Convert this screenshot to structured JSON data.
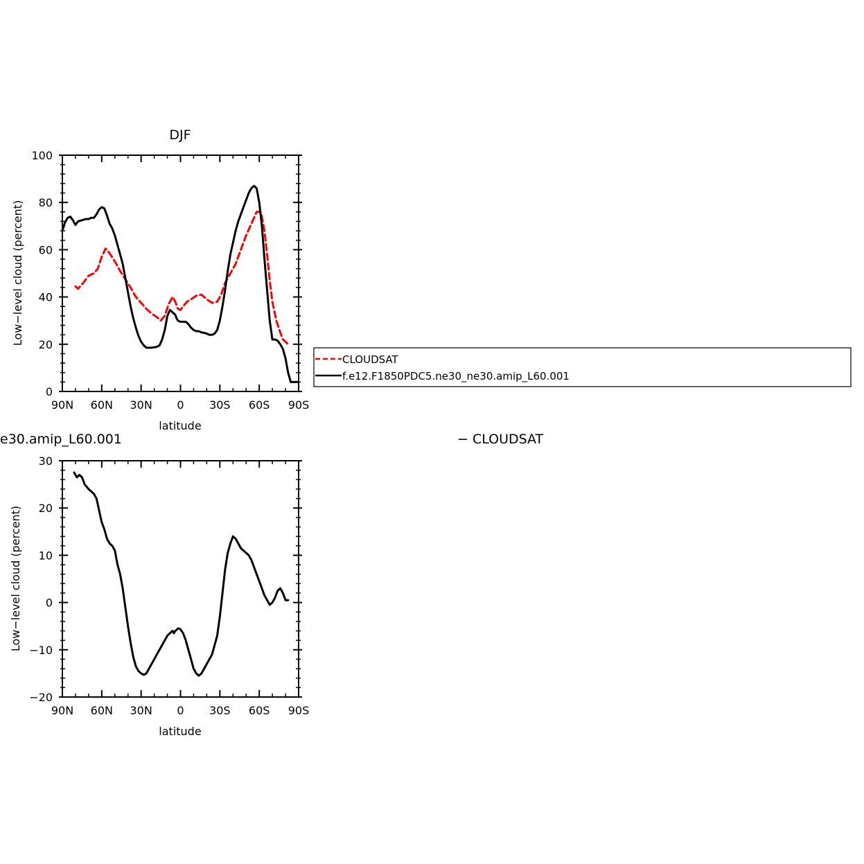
{
  "chart_data": [
    {
      "type": "line",
      "title": "DJF",
      "xlabel": "latitude",
      "ylabel": "Low−level cloud (percent)",
      "xlim": [
        -90,
        90
      ],
      "ylim": [
        0,
        100
      ],
      "xticks": [
        -90,
        -60,
        -30,
        0,
        30,
        60,
        90
      ],
      "xtick_labels": [
        "90N",
        "60N",
        "30N",
        "0",
        "30S",
        "60S",
        "90S"
      ],
      "yticks": [
        0,
        20,
        40,
        60,
        80,
        100
      ],
      "ytick_labels": [
        "0",
        "20",
        "40",
        "60",
        "80",
        "100"
      ],
      "legend": {
        "placement": "right of plot",
        "entries": [
          "CLOUDSAT",
          "f.e12.F1850PDC5.ne30_ne30.amip_L60.001"
        ]
      },
      "series": [
        {
          "name": "CLOUDSAT",
          "color": "#ff0000",
          "style": "dashed",
          "x": [
            -80,
            -78,
            -74,
            -70,
            -66,
            -63,
            -60,
            -57,
            -54,
            -50,
            -46,
            -42,
            -38,
            -34,
            -30,
            -26,
            -22,
            -18,
            -15,
            -12,
            -9,
            -6,
            -4,
            -2,
            0,
            2,
            5,
            8,
            12,
            16,
            18,
            20,
            24,
            28,
            31,
            34,
            38,
            42,
            46,
            50,
            54,
            58,
            61,
            62,
            64,
            66,
            68,
            70,
            73,
            76,
            78,
            80,
            82
          ],
          "y": [
            44.5,
            43.5,
            46,
            49,
            50,
            52,
            57,
            60.5,
            58.5,
            55,
            51,
            47.5,
            44,
            40,
            37.5,
            35,
            33,
            31.5,
            30,
            32,
            37,
            40,
            38,
            35,
            34.5,
            36,
            38,
            39,
            40.5,
            41,
            40,
            39,
            37.5,
            38,
            41,
            46,
            50,
            54,
            60,
            66,
            71,
            76,
            76,
            74,
            68,
            58,
            47,
            38,
            30,
            25,
            22,
            21,
            20
          ]
        },
        {
          "name": "f.e12.F1850PDC5.ne30_ne30.amip_L60.001",
          "color": "#000000",
          "style": "solid",
          "x": [
            -90,
            -88,
            -86,
            -84,
            -82,
            -80,
            -78,
            -75,
            -72,
            -70,
            -68,
            -66,
            -64,
            -62,
            -60,
            -58,
            -56,
            -54,
            -52,
            -50,
            -48,
            -46,
            -44,
            -42,
            -40,
            -38,
            -36,
            -34,
            -32,
            -30,
            -28,
            -26,
            -24,
            -22,
            -20,
            -18,
            -16,
            -14,
            -12,
            -10,
            -8,
            -6,
            -5,
            -4,
            -3,
            -2,
            0,
            2,
            4,
            6,
            8,
            10,
            12,
            14,
            16,
            18,
            20,
            22,
            24,
            26,
            28,
            30,
            32,
            34,
            36,
            38,
            40,
            42,
            44,
            46,
            48,
            50,
            52,
            54,
            56,
            58,
            60,
            62,
            64,
            66,
            68,
            70,
            72,
            74,
            76,
            78,
            80,
            82,
            84,
            86,
            88,
            89
          ],
          "y": [
            68,
            71.5,
            73.5,
            74,
            72.5,
            70.5,
            72,
            72.5,
            73,
            73,
            73.5,
            73.5,
            75,
            77,
            78,
            77.5,
            74.5,
            71,
            69,
            66,
            62,
            58,
            54,
            48,
            42,
            36,
            31,
            27,
            23.5,
            21,
            19.5,
            18.5,
            18.5,
            18.5,
            18.7,
            18.9,
            19.5,
            22,
            26,
            32,
            34.5,
            33.5,
            33,
            32.5,
            31,
            30,
            29.5,
            29.5,
            29.5,
            28.5,
            27,
            26,
            25.5,
            25.5,
            25,
            24.8,
            24.5,
            24,
            24,
            24.5,
            26,
            30,
            36,
            43,
            51,
            58,
            63,
            68,
            72,
            75,
            78,
            81,
            84,
            86,
            87,
            86,
            80,
            70,
            56,
            43,
            30,
            22,
            22,
            21.5,
            20,
            18,
            14,
            8,
            4,
            4,
            4,
            4
          ]
        }
      ]
    },
    {
      "type": "line",
      "title": "e30.amip_L60.001",
      "title_right": "− CLOUDSAT",
      "xlabel": "latitude",
      "ylabel": "Low−level cloud (percent)",
      "xlim": [
        -90,
        90
      ],
      "ylim": [
        -20,
        30
      ],
      "xticks": [
        -90,
        -60,
        -30,
        0,
        30,
        60,
        90
      ],
      "xtick_labels": [
        "90N",
        "60N",
        "30N",
        "0",
        "30S",
        "60S",
        "90S"
      ],
      "yticks": [
        -20,
        -10,
        0,
        10,
        20,
        30
      ],
      "ytick_labels": [
        "−20",
        "−10",
        "0",
        "10",
        "20",
        "30"
      ],
      "series": [
        {
          "color": "#000000",
          "style": "solid",
          "x": [
            -81,
            -79,
            -77,
            -75,
            -73,
            -70,
            -68,
            -66,
            -64,
            -62,
            -60,
            -58,
            -56,
            -54,
            -52,
            -50,
            -48,
            -46,
            -44,
            -42,
            -40,
            -38,
            -36,
            -34,
            -32,
            -30,
            -28,
            -26,
            -24,
            -22,
            -20,
            -18,
            -16,
            -14,
            -12,
            -10,
            -8,
            -6,
            -5,
            -4,
            -3,
            -2,
            -1,
            0,
            2,
            4,
            6,
            8,
            10,
            12,
            14,
            16,
            18,
            20,
            22,
            24,
            26,
            28,
            30,
            32,
            34,
            36,
            38,
            40,
            42,
            44,
            46,
            48,
            50,
            52,
            54,
            56,
            58,
            60,
            62,
            64,
            66,
            68,
            70,
            72,
            74,
            76,
            78,
            80,
            82
          ],
          "y": [
            27.5,
            26.5,
            27,
            26.5,
            25,
            24,
            23.5,
            23,
            22,
            19.5,
            17,
            15.5,
            13.5,
            12.5,
            12,
            11,
            8,
            6,
            3,
            -1,
            -5,
            -8.5,
            -11.5,
            -13.5,
            -14.5,
            -15,
            -15.3,
            -15,
            -14,
            -13,
            -12,
            -11,
            -10,
            -9,
            -8,
            -7,
            -6.5,
            -6,
            -6.5,
            -6,
            -5.8,
            -5.5,
            -5.5,
            -5.7,
            -6.5,
            -8,
            -10,
            -12,
            -14,
            -15,
            -15.5,
            -15,
            -14,
            -13,
            -12,
            -11,
            -9,
            -7,
            -3,
            2,
            7,
            10.5,
            12.5,
            14,
            13.5,
            12.5,
            11.5,
            11,
            10.5,
            10,
            9,
            7.5,
            6,
            4.5,
            3,
            1.5,
            0.5,
            -0.5,
            0,
            1,
            2.5,
            3,
            2,
            0.5,
            0.5
          ]
        }
      ]
    }
  ]
}
